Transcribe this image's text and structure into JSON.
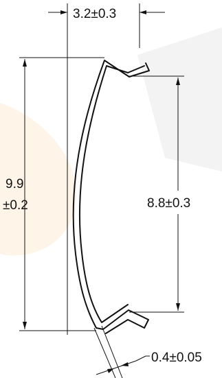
{
  "dimensions": {
    "top_width": "3.2±0.3",
    "overall_height_value": "9.9",
    "overall_height_tol": "±0.2",
    "inner_height": "8.8±0.3",
    "thickness": "0.4±0.05"
  },
  "colors": {
    "line": "#111111",
    "watermark": "#f4f4f4",
    "watermark_accent": "#fff3e6"
  }
}
